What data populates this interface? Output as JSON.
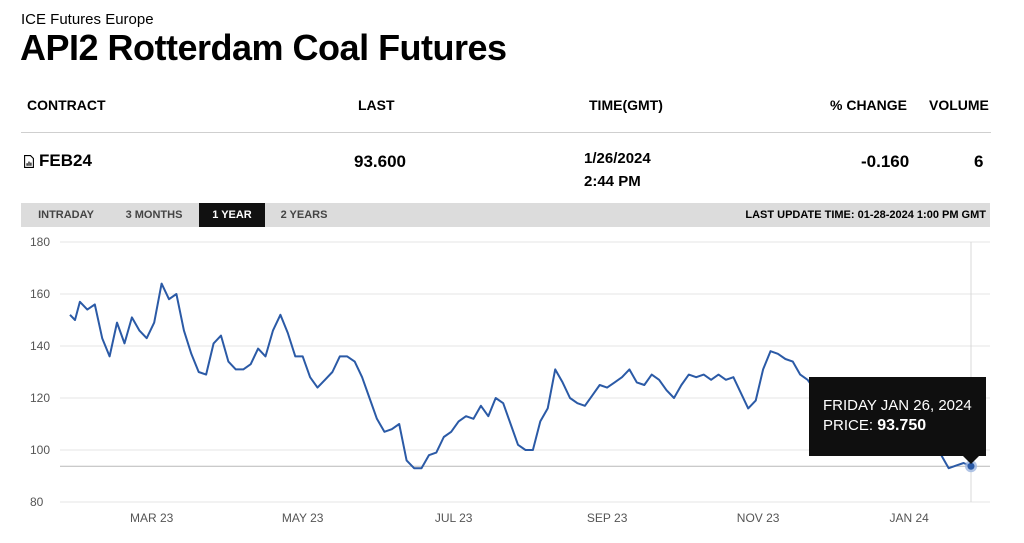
{
  "page": {
    "exchange": "ICE Futures Europe",
    "title": "API2 Rotterdam Coal Futures"
  },
  "table": {
    "headers": {
      "contract": "CONTRACT",
      "last": "LAST",
      "time": "TIME(GMT)",
      "change": "% CHANGE",
      "volume": "VOLUME"
    },
    "row": {
      "contract": "FEB24",
      "last": "93.600",
      "date": "1/26/2024",
      "time": "2:44 PM",
      "change": "-0.160",
      "volume": "6"
    }
  },
  "tabs": [
    {
      "label": "INTRADAY",
      "active": false
    },
    {
      "label": "3 MONTHS",
      "active": false
    },
    {
      "label": "1 YEAR",
      "active": true
    },
    {
      "label": "2 YEARS",
      "active": false
    }
  ],
  "last_update": "LAST UPDATE TIME: 01-28-2024 1:00 PM GMT",
  "tooltip": {
    "date": "FRIDAY JAN 26, 2024",
    "price_label": "PRICE:",
    "price_value": "93.750"
  },
  "colors": {
    "line": "#2b5aa6",
    "tooltip_bg": "#0f0f0f",
    "tab_bar": "#dcdcdc",
    "active_tab": "#111111"
  },
  "chart_data": {
    "type": "line",
    "title": "",
    "xlabel": "",
    "ylabel": "",
    "ylim": [
      80,
      180
    ],
    "y_ticks": [
      80,
      100,
      120,
      140,
      160,
      180
    ],
    "x_ticks": [
      {
        "label": "MAR 23",
        "date": "2023-03-01"
      },
      {
        "label": "MAY 23",
        "date": "2023-05-01"
      },
      {
        "label": "JUL 23",
        "date": "2023-07-01"
      },
      {
        "label": "SEP 23",
        "date": "2023-09-01"
      },
      {
        "label": "NOV 23",
        "date": "2023-11-01"
      },
      {
        "label": "JAN 24",
        "date": "2024-01-01"
      }
    ],
    "xlim": [
      "2023-01-27",
      "2024-01-31"
    ],
    "grid": true,
    "reference_line": 93.75,
    "highlight": {
      "date": "2024-01-26",
      "value": 93.75
    },
    "series": [
      {
        "name": "",
        "x": [
          "2023-01-27",
          "2023-01-29",
          "2023-01-31",
          "2023-02-03",
          "2023-02-06",
          "2023-02-09",
          "2023-02-12",
          "2023-02-15",
          "2023-02-18",
          "2023-02-21",
          "2023-02-24",
          "2023-02-27",
          "2023-03-02",
          "2023-03-05",
          "2023-03-08",
          "2023-03-11",
          "2023-03-14",
          "2023-03-17",
          "2023-03-20",
          "2023-03-23",
          "2023-03-26",
          "2023-03-29",
          "2023-04-01",
          "2023-04-04",
          "2023-04-07",
          "2023-04-10",
          "2023-04-13",
          "2023-04-16",
          "2023-04-19",
          "2023-04-22",
          "2023-04-25",
          "2023-04-28",
          "2023-05-01",
          "2023-05-04",
          "2023-05-07",
          "2023-05-10",
          "2023-05-13",
          "2023-05-16",
          "2023-05-19",
          "2023-05-22",
          "2023-05-25",
          "2023-05-28",
          "2023-05-31",
          "2023-06-03",
          "2023-06-06",
          "2023-06-09",
          "2023-06-12",
          "2023-06-15",
          "2023-06-18",
          "2023-06-21",
          "2023-06-24",
          "2023-06-27",
          "2023-06-30",
          "2023-07-03",
          "2023-07-06",
          "2023-07-09",
          "2023-07-12",
          "2023-07-15",
          "2023-07-18",
          "2023-07-21",
          "2023-07-24",
          "2023-07-27",
          "2023-07-30",
          "2023-08-02",
          "2023-08-05",
          "2023-08-08",
          "2023-08-11",
          "2023-08-14",
          "2023-08-17",
          "2023-08-20",
          "2023-08-23",
          "2023-08-26",
          "2023-08-29",
          "2023-09-01",
          "2023-09-04",
          "2023-09-07",
          "2023-09-10",
          "2023-09-13",
          "2023-09-16",
          "2023-09-19",
          "2023-09-22",
          "2023-09-25",
          "2023-09-28",
          "2023-10-01",
          "2023-10-04",
          "2023-10-07",
          "2023-10-10",
          "2023-10-13",
          "2023-10-16",
          "2023-10-19",
          "2023-10-22",
          "2023-10-25",
          "2023-10-28",
          "2023-10-31",
          "2023-11-03",
          "2023-11-06",
          "2023-11-09",
          "2023-11-12",
          "2023-11-15",
          "2023-11-18",
          "2023-11-21",
          "2023-11-24",
          "2023-11-27",
          "2023-11-30",
          "2023-12-03",
          "2023-12-06",
          "2023-12-09",
          "2023-12-12",
          "2023-12-15",
          "2023-12-18",
          "2023-12-21",
          "2023-12-24",
          "2023-12-27",
          "2023-12-30",
          "2024-01-02",
          "2024-01-05",
          "2024-01-08",
          "2024-01-11",
          "2024-01-14",
          "2024-01-17",
          "2024-01-20",
          "2024-01-23",
          "2024-01-26"
        ],
        "values": [
          152,
          150,
          157,
          154,
          156,
          143,
          136,
          149,
          141,
          151,
          146,
          143,
          149,
          164,
          158,
          160,
          146,
          137,
          130,
          129,
          141,
          144,
          134,
          131,
          131,
          133,
          139,
          136,
          146,
          152,
          145,
          136,
          136,
          128,
          124,
          127,
          130,
          136,
          136,
          134,
          128,
          120,
          112,
          107,
          108,
          110,
          96,
          93,
          93,
          98,
          99,
          105,
          107,
          111,
          113,
          112,
          117,
          113,
          120,
          118,
          110,
          102,
          100,
          100,
          111,
          116,
          131,
          126,
          120,
          118,
          117,
          121,
          125,
          124,
          126,
          128,
          131,
          126,
          125,
          129,
          127,
          123,
          120,
          125,
          129,
          128,
          129,
          127,
          129,
          127,
          128,
          122,
          116,
          119,
          131,
          138,
          137,
          135,
          134,
          129,
          127,
          123,
          115,
          118,
          110,
          108,
          111,
          108,
          107,
          109,
          111,
          110,
          109,
          111,
          113,
          108,
          105,
          100,
          98,
          93,
          94,
          95,
          93.75
        ]
      }
    ]
  }
}
